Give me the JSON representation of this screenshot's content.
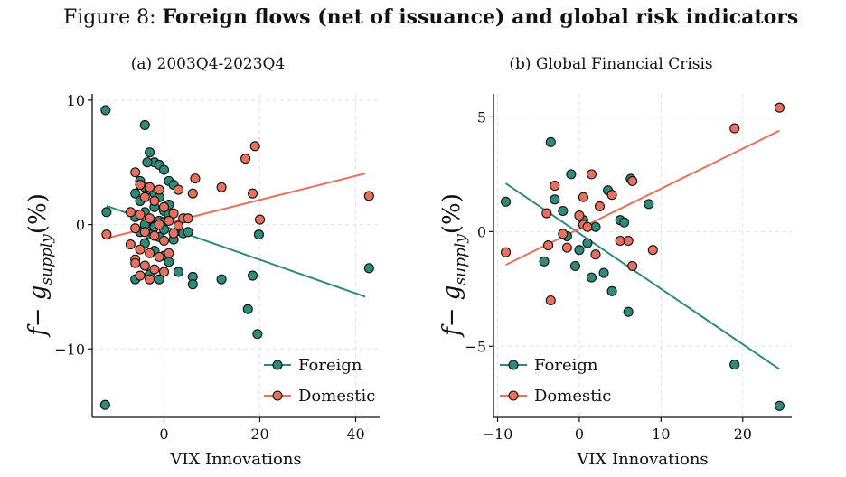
{
  "figure": {
    "prefix": "Figure 8: ",
    "title": "Foreign flows (net of issuance) and global risk indicators"
  },
  "colors": {
    "foreign": "#2e8b7b",
    "domestic": "#e8705f",
    "axis": "#111111",
    "grid": "#e2e2e2"
  },
  "chart_data": [
    {
      "type": "scatter",
      "title": "(a) 2003Q4-2023Q4",
      "xlabel": "VIX Innovations",
      "ylabel": "f − g_supply (%)",
      "ylabel_main": "f− g",
      "ylabel_sub": "supply",
      "ylabel_tail": "(%)",
      "xlim": [
        -15,
        45
      ],
      "ylim": [
        -15.5,
        10.5
      ],
      "xticks": [
        0,
        20,
        40
      ],
      "xtick_labels": [
        "0",
        "20",
        "40"
      ],
      "yticks": [
        10,
        0,
        -10
      ],
      "ytick_labels": [
        "10",
        "0",
        "−10"
      ],
      "grid": true,
      "legend": "bottom-right",
      "series": [
        {
          "name": "Foreign",
          "points": [
            [
              -12.2,
              9.2
            ],
            [
              -12,
              1
            ],
            [
              -12.3,
              -14.5
            ],
            [
              -4,
              8
            ],
            [
              -3,
              5.8
            ],
            [
              -2,
              5
            ],
            [
              -1,
              4.8
            ],
            [
              0,
              4.4
            ],
            [
              -3.5,
              5
            ],
            [
              -5,
              3.5
            ],
            [
              -4,
              3
            ],
            [
              -3,
              2.8
            ],
            [
              -6,
              2.5
            ],
            [
              -2,
              2.5
            ],
            [
              -1,
              2.2
            ],
            [
              1,
              1.6
            ],
            [
              1,
              3.5
            ],
            [
              2,
              3.2
            ],
            [
              -5,
              1.9
            ],
            [
              -2,
              1.4
            ],
            [
              0,
              1.1
            ],
            [
              -4,
              1
            ],
            [
              -6,
              0.6
            ],
            [
              -3,
              0.4
            ],
            [
              -1,
              0.3
            ],
            [
              0,
              0.2
            ],
            [
              1,
              0.8
            ],
            [
              -4,
              0
            ],
            [
              -2,
              -0.2
            ],
            [
              0,
              -0.4
            ],
            [
              -5,
              -0.6
            ],
            [
              -3,
              -0.8
            ],
            [
              -1,
              -1
            ],
            [
              2,
              -1.2
            ],
            [
              3,
              -0.5
            ],
            [
              4,
              -0.7
            ],
            [
              5,
              -0.6
            ],
            [
              -4,
              -1.5
            ],
            [
              -2,
              -2.1
            ],
            [
              0,
              -2.5
            ],
            [
              1,
              -3
            ],
            [
              -6,
              -4.4
            ],
            [
              -3,
              -4
            ],
            [
              -1,
              -4.4
            ],
            [
              3,
              -3.8
            ],
            [
              6,
              -4.2
            ],
            [
              6,
              -4.8
            ],
            [
              12,
              -4.4
            ],
            [
              17.5,
              -6.8
            ],
            [
              18.5,
              -4.1
            ],
            [
              19.5,
              -8.8
            ],
            [
              19.8,
              -0.8
            ],
            [
              42.8,
              -3.5
            ]
          ],
          "fit": {
            "x": [
              -12,
              42
            ],
            "y": [
              1.5,
              -5.8
            ]
          }
        },
        {
          "name": "Domestic",
          "points": [
            [
              -12,
              -0.8
            ],
            [
              -6,
              4.2
            ],
            [
              -5,
              3.2
            ],
            [
              -3,
              3
            ],
            [
              -1,
              2.8
            ],
            [
              -4,
              2.2
            ],
            [
              -2,
              1.9
            ],
            [
              0,
              1.4
            ],
            [
              2,
              0.9
            ],
            [
              3,
              2.8
            ],
            [
              -7,
              1
            ],
            [
              -5,
              0.8
            ],
            [
              -3,
              0.5
            ],
            [
              -1,
              0
            ],
            [
              1,
              0.3
            ],
            [
              3,
              -0.1
            ],
            [
              4,
              0.5
            ],
            [
              5,
              0.5
            ],
            [
              -6,
              -0.3
            ],
            [
              -4,
              -0.6
            ],
            [
              -2,
              -0.9
            ],
            [
              0,
              -1.3
            ],
            [
              2,
              -0.7
            ],
            [
              -7,
              -1.6
            ],
            [
              -5,
              -2
            ],
            [
              -3,
              -2.3
            ],
            [
              -1,
              -2.6
            ],
            [
              1,
              -2.3
            ],
            [
              -6,
              -2.8
            ],
            [
              -4,
              -3.3
            ],
            [
              -2,
              -3.6
            ],
            [
              0,
              -3.8
            ],
            [
              -5,
              -4.1
            ],
            [
              -3,
              -4.4
            ],
            [
              -6,
              -3.1
            ],
            [
              6,
              2.5
            ],
            [
              6.5,
              3.7
            ],
            [
              12,
              3
            ],
            [
              17,
              5.3
            ],
            [
              19,
              6.3
            ],
            [
              18.5,
              2.5
            ],
            [
              20,
              0.4
            ],
            [
              42.8,
              2.3
            ]
          ],
          "fit": {
            "x": [
              -12,
              42
            ],
            "y": [
              -1.1,
              4.1
            ]
          }
        }
      ]
    },
    {
      "type": "scatter",
      "title": "(b) Global Financial Crisis",
      "xlabel": "VIX Innovations",
      "ylabel": "f − g_supply (%)",
      "ylabel_main": "f− g",
      "ylabel_sub": "supply",
      "ylabel_tail": "(%)",
      "xlim": [
        -10.5,
        26
      ],
      "ylim": [
        -8.1,
        6
      ],
      "xticks": [
        -10,
        0,
        10,
        20
      ],
      "xtick_labels": [
        "−10",
        "0",
        "10",
        "20"
      ],
      "yticks": [
        5,
        0,
        -5
      ],
      "ytick_labels": [
        "5",
        "0",
        "−5"
      ],
      "grid": true,
      "legend": "bottom-left",
      "series": [
        {
          "name": "Foreign",
          "points": [
            [
              -9,
              1.3
            ],
            [
              -4.3,
              -1.3
            ],
            [
              -3.5,
              3.9
            ],
            [
              -3,
              1.4
            ],
            [
              -2,
              0.9
            ],
            [
              -1.5,
              -0.2
            ],
            [
              -1,
              2.5
            ],
            [
              -0.5,
              -1.5
            ],
            [
              0,
              -0.8
            ],
            [
              0.5,
              0.5
            ],
            [
              1,
              -0.5
            ],
            [
              1.5,
              -2
            ],
            [
              2,
              0.2
            ],
            [
              3,
              -1.8
            ],
            [
              3.5,
              1.8
            ],
            [
              4,
              -2.6
            ],
            [
              5,
              0.5
            ],
            [
              5.5,
              0.4
            ],
            [
              6,
              -3.5
            ],
            [
              6.3,
              2.3
            ],
            [
              8.5,
              1.2
            ],
            [
              19,
              -5.8
            ],
            [
              24.5,
              -7.6
            ]
          ],
          "fit": {
            "x": [
              -9,
              24.5
            ],
            "y": [
              2.1,
              -6
            ]
          }
        },
        {
          "name": "Domestic",
          "points": [
            [
              -9,
              -0.9
            ],
            [
              -4,
              0.8
            ],
            [
              -3.8,
              -0.6
            ],
            [
              -3.5,
              -3
            ],
            [
              -3,
              2
            ],
            [
              -2,
              -0.1
            ],
            [
              -1.5,
              -0.7
            ],
            [
              0,
              0.7
            ],
            [
              0.5,
              1.5
            ],
            [
              0.5,
              0.3
            ],
            [
              1,
              0.2
            ],
            [
              1.5,
              2.5
            ],
            [
              2,
              -1
            ],
            [
              2.5,
              1.1
            ],
            [
              4,
              1.6
            ],
            [
              5,
              -0.4
            ],
            [
              6,
              -0.4
            ],
            [
              6.5,
              -1.5
            ],
            [
              6.5,
              2.2
            ],
            [
              9,
              -0.8
            ],
            [
              19,
              4.5
            ],
            [
              24.5,
              5.4
            ]
          ],
          "fit": {
            "x": [
              -9,
              24.5
            ],
            "y": [
              -1.45,
              4.4
            ]
          }
        }
      ]
    }
  ]
}
